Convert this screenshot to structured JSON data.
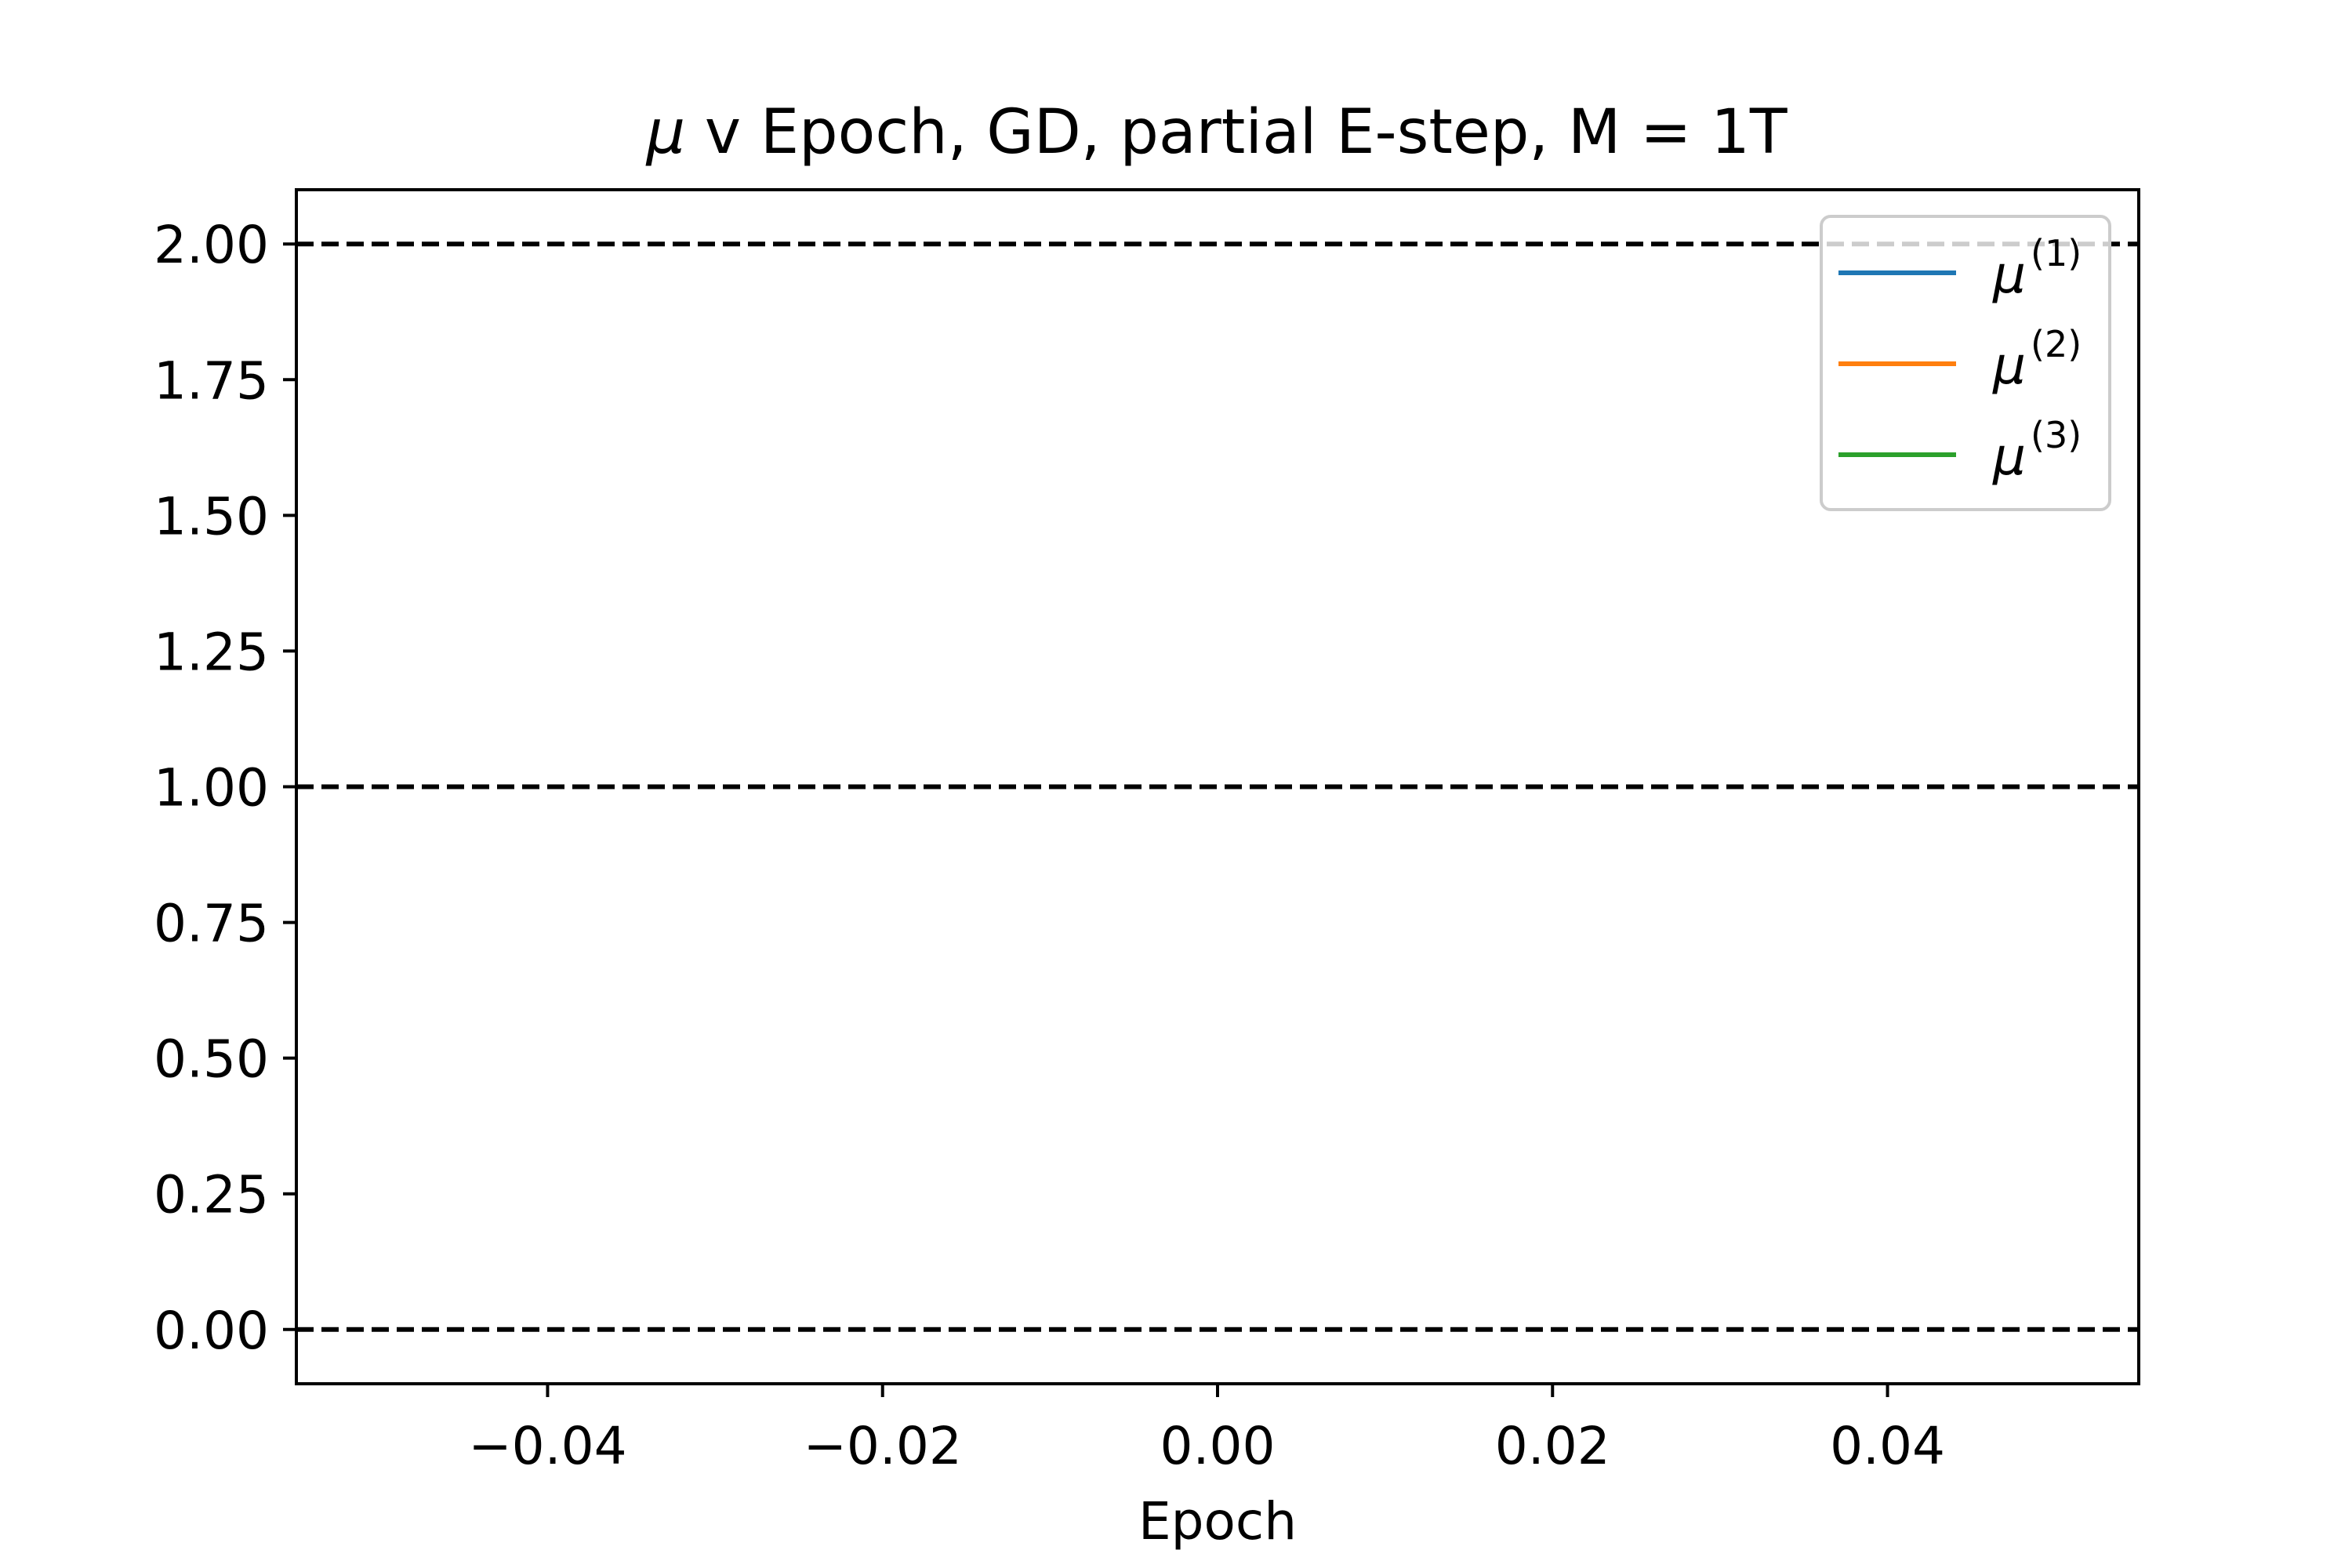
{
  "chart_data": {
    "type": "line",
    "title": {
      "symbol": "μ",
      "text": " v Epoch, GD, partial E-step, M = 1T"
    },
    "xlabel": "Epoch",
    "ylabel": "",
    "xlim": [
      -0.055,
      0.055
    ],
    "ylim": [
      -0.1,
      2.1
    ],
    "x_ticks": [
      -0.04,
      -0.02,
      0.0,
      0.02,
      0.04
    ],
    "x_tick_labels": [
      "−0.04",
      "−0.02",
      "0.00",
      "0.02",
      "0.04"
    ],
    "y_ticks": [
      0.0,
      0.25,
      0.5,
      0.75,
      1.0,
      1.25,
      1.5,
      1.75,
      2.0
    ],
    "y_tick_labels": [
      "0.00",
      "0.25",
      "0.50",
      "0.75",
      "1.00",
      "1.25",
      "1.50",
      "1.75",
      "2.00"
    ],
    "grid": false,
    "reference_lines": [
      {
        "y": 0.0,
        "style": "dashed",
        "color": "#000000"
      },
      {
        "y": 1.0,
        "style": "dashed",
        "color": "#000000"
      },
      {
        "y": 2.0,
        "style": "dashed",
        "color": "#000000"
      }
    ],
    "legend": {
      "placement": "top-right",
      "entries": [
        {
          "symbol": "μ",
          "sup": "(1)",
          "color": "#1f77b4"
        },
        {
          "symbol": "μ",
          "sup": "(2)",
          "color": "#ff7f0e"
        },
        {
          "symbol": "μ",
          "sup": "(3)",
          "color": "#2ca02c"
        }
      ]
    },
    "series": [
      {
        "color": "#1f77b4",
        "x": [],
        "y": []
      },
      {
        "color": "#ff7f0e",
        "x": [],
        "y": []
      },
      {
        "color": "#2ca02c",
        "x": [],
        "y": []
      }
    ]
  }
}
